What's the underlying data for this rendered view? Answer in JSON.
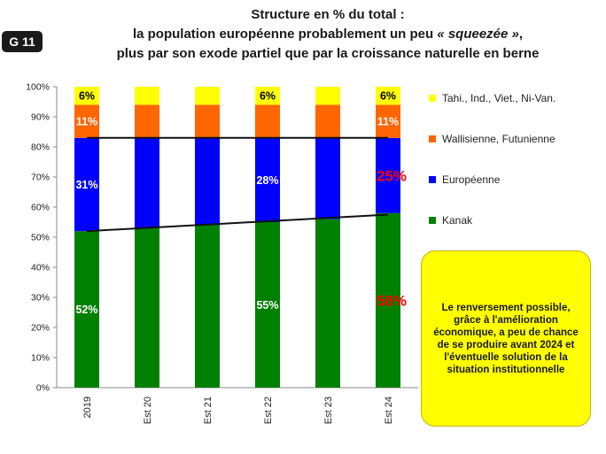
{
  "badge": "G 11",
  "title": {
    "line1": "Structure en % du total :",
    "line2_start": "la population européenne probablement un peu ",
    "line2_italic": "« squeezée »",
    "line2_end": ",",
    "line3": "plus par son exode partiel que par la croissance naturelle en berne"
  },
  "callout": "Le renversement possible, grâce à l'amélioration économique, a peu de chance de se produire avant 2024 et l'éventuelle solution de la situation institutionnelle",
  "chart_data": {
    "type": "bar",
    "stacked": true,
    "categories": [
      "2019",
      "Est 20",
      "Est 21",
      "Est 22",
      "Est 23",
      "Est 24"
    ],
    "series": [
      {
        "name": "Kanak",
        "color": "#008000",
        "values": [
          52,
          53,
          54,
          55,
          56,
          58
        ]
      },
      {
        "name": "Européenne",
        "color": "#0000ff",
        "values": [
          31,
          30,
          29,
          28,
          27,
          25
        ]
      },
      {
        "name": "Wallisienne, Futunienne",
        "color": "#ff6600",
        "values": [
          11,
          11,
          11,
          11,
          11,
          11
        ]
      },
      {
        "name": "Tahi., Ind., Viet., Ni-Van.",
        "color": "#ffff00",
        "values": [
          6,
          6,
          6,
          6,
          6,
          6
        ]
      }
    ],
    "labels": [
      {
        "category": "2019",
        "series": "Kanak",
        "text": "52%",
        "color": "#ffffff"
      },
      {
        "category": "2019",
        "series": "Européenne",
        "text": "31%",
        "color": "#ffffff"
      },
      {
        "category": "2019",
        "series": "Wallisienne, Futunienne",
        "text": "11%",
        "color": "#ffffff"
      },
      {
        "category": "2019",
        "series": "Tahi., Ind., Viet., Ni-Van.",
        "text": "6%",
        "color": "#000000"
      },
      {
        "category": "Est 22",
        "series": "Kanak",
        "text": "55%",
        "color": "#ffffff"
      },
      {
        "category": "Est 22",
        "series": "Européenne",
        "text": "28%",
        "color": "#ffffff"
      },
      {
        "category": "Est 22",
        "series": "Tahi., Ind., Viet., Ni-Van.",
        "text": "6%",
        "color": "#000000"
      },
      {
        "category": "Est 24",
        "series": "Kanak",
        "text": "58%",
        "color": "#ff0000"
      },
      {
        "category": "Est 24",
        "series": "Européenne",
        "text": "25%",
        "color": "#ff0000"
      },
      {
        "category": "Est 24",
        "series": "Wallisienne, Futunienne",
        "text": "11%",
        "color": "#ffffff"
      },
      {
        "category": "Est 24",
        "series": "Tahi., Ind., Viet., Ni-Van.",
        "text": "6%",
        "color": "#000000"
      }
    ],
    "trend_lines": [
      {
        "name": "upper-trend",
        "from": [
          0,
          83
        ],
        "to": [
          5,
          83
        ]
      },
      {
        "name": "lower-trend",
        "from": [
          0,
          52
        ],
        "to": [
          5,
          57.5
        ]
      }
    ],
    "yticks": [
      "0%",
      "10%",
      "20%",
      "30%",
      "40%",
      "50%",
      "60%",
      "70%",
      "80%",
      "90%",
      "100%"
    ],
    "ylim": [
      0,
      100
    ],
    "legend_position": "right",
    "legend_order": [
      "Tahi., Ind., Viet., Ni-Van.",
      "Wallisienne, Futunienne",
      "Européenne",
      "Kanak"
    ]
  }
}
